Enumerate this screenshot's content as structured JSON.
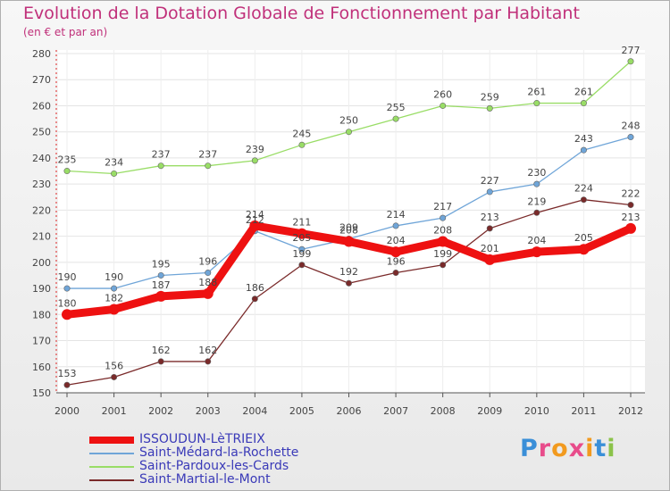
{
  "title": "Evolution de la Dotation Globale de Fonctionnement par Habitant",
  "subtitle": "(en € et par an)",
  "logo": {
    "text": "Proxiti",
    "colors": [
      "#3a8fd8",
      "#e84c8b",
      "#f29a1f",
      "#e84c8b",
      "#f29a1f",
      "#3a8fd8",
      "#8bc34a"
    ]
  },
  "chart_data": {
    "type": "line",
    "title": "Evolution de la Dotation Globale de Fonctionnement par Habitant",
    "xlabel": "",
    "ylabel": "(en € et par an)",
    "ylim": [
      150,
      280
    ],
    "yticks": [
      150,
      160,
      170,
      180,
      190,
      200,
      210,
      220,
      230,
      240,
      250,
      260,
      270,
      280
    ],
    "categories": [
      "2000",
      "2001",
      "2002",
      "2003",
      "2004",
      "2005",
      "2006",
      "2007",
      "2008",
      "2009",
      "2010",
      "2011",
      "2012"
    ],
    "grid": true,
    "legend_position": "bottom-left",
    "series": [
      {
        "name": "ISSOUDUN-LèTRIEIX",
        "color": "#ee1111",
        "values": [
          180,
          182,
          187,
          188,
          214,
          211,
          208,
          204,
          208,
          201,
          204,
          205,
          213
        ]
      },
      {
        "name": "Saint-Médard-la-Rochette",
        "color": "#6fa5d8",
        "values": [
          190,
          190,
          195,
          196,
          212,
          205,
          209,
          214,
          217,
          227,
          230,
          243,
          248
        ]
      },
      {
        "name": "Saint-Pardoux-les-Cards",
        "color": "#99dd66",
        "values": [
          235,
          234,
          237,
          237,
          239,
          245,
          250,
          255,
          260,
          259,
          261,
          261,
          277
        ]
      },
      {
        "name": "Saint-Martial-le-Mont",
        "color": "#7a2a2a",
        "values": [
          153,
          156,
          162,
          162,
          186,
          199,
          192,
          196,
          199,
          213,
          219,
          224,
          222
        ]
      }
    ]
  }
}
